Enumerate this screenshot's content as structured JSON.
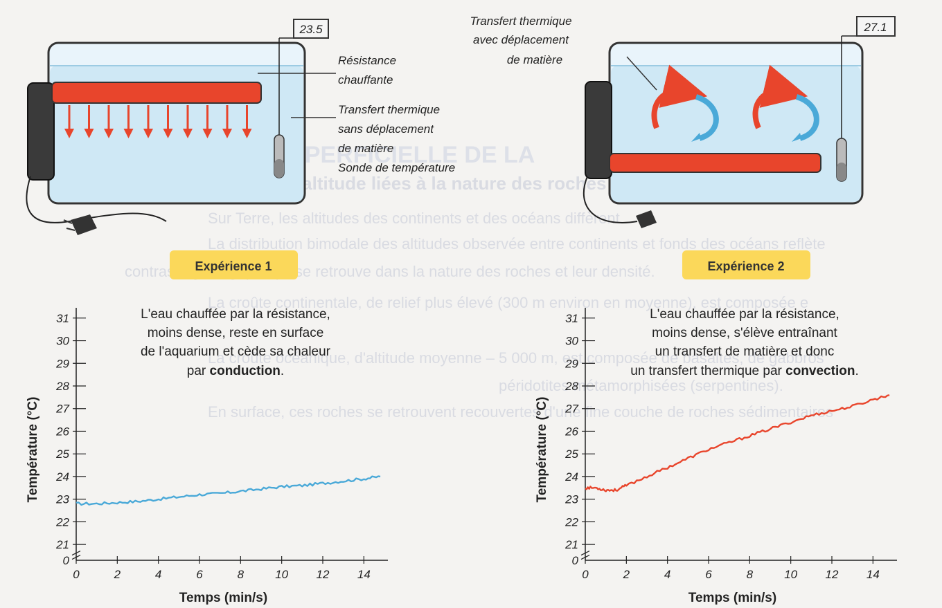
{
  "background": {
    "heading": "LA STRUCTURE SUPERFICIELLE DE LA",
    "section_title": "A. Des différences d'altitude liées à la nature des roches crustales",
    "lines": [
      "Sur Terre, les altitudes des continents et des océans diffèrent.",
      "La distribution bimodale des altitudes observée entre continents et fonds des océans reflète",
      "contraste géologique qui se retrouve dans la nature des roches et leur densité.",
      "La croûte continentale, de relief plus élevé (300 m environ en moyenne), est composée e",
      "La croûte océanique, d'altitude moyenne – 5 000 m, est composée de basaltes, de gabbros",
      "péridotites métamorphisées (serpentines).",
      "En surface, ces roches se retrouvent recouvertes d'une fine couche de roches sédimentaires"
    ]
  },
  "exp1": {
    "badge": "Expérience 1",
    "display_value": "23.5",
    "label_resistance": [
      "Résistance",
      "chauffante"
    ],
    "label_transfer": [
      "Transfert thermique",
      "sans déplacement",
      "de matière"
    ],
    "label_probe": "Sonde de température",
    "description": [
      "L'eau chauffée par la résistance,",
      "moins dense, reste en surface",
      "de l'aquarium et cède sa chaleur",
      "par "
    ],
    "description_bold": "conduction",
    "description_end": "."
  },
  "exp2": {
    "badge": "Expérience 2",
    "display_value": "27.1",
    "label_transfer": [
      "Transfert thermique",
      "avec déplacement",
      "de matière"
    ],
    "description": [
      "L'eau chauffée par la résistance,",
      "moins dense, s'élève entraînant",
      "un transfert de matière et donc",
      "un transfert thermique par "
    ],
    "description_bold": "convection",
    "description_end": "."
  },
  "colors": {
    "water": "#cfe8f5",
    "heater": "#e8452c",
    "arrow": "#e8452c",
    "line1": "#4aa9d8",
    "line2": "#e8452c",
    "badge": "#fbd85a"
  },
  "chart_data": [
    {
      "type": "line",
      "title": "",
      "xlabel": "Temps (min/s)",
      "ylabel": "Température (°C)",
      "x_ticks": [
        0,
        2,
        4,
        6,
        8,
        10,
        12,
        14
      ],
      "y_ticks": [
        21,
        22,
        23,
        24,
        25,
        26,
        27,
        28,
        29,
        30,
        31
      ],
      "y_zero_label": "0",
      "xlim": [
        0,
        15
      ],
      "ylim": [
        20.3,
        31.3
      ],
      "series": [
        {
          "x": [
            0,
            1,
            2,
            3,
            4,
            5,
            6,
            7,
            8,
            9,
            10,
            11,
            12,
            13,
            14,
            14.8
          ],
          "y": [
            22.8,
            22.8,
            22.85,
            22.9,
            23.0,
            23.1,
            23.2,
            23.25,
            23.35,
            23.45,
            23.55,
            23.6,
            23.7,
            23.8,
            23.9,
            24.0
          ]
        }
      ]
    },
    {
      "type": "line",
      "title": "",
      "xlabel": "Temps (min/s)",
      "ylabel": "Température (°C)",
      "x_ticks": [
        0,
        2,
        4,
        6,
        8,
        10,
        12,
        14
      ],
      "y_ticks": [
        21,
        22,
        23,
        24,
        25,
        26,
        27,
        28,
        29,
        30,
        31
      ],
      "y_zero_label": "0",
      "xlim": [
        0,
        15
      ],
      "ylim": [
        20.3,
        31.3
      ],
      "series": [
        {
          "x": [
            0,
            0.5,
            1,
            1.5,
            2,
            3,
            4,
            5,
            6,
            7,
            8,
            9,
            10,
            11,
            12,
            13,
            14,
            14.8
          ],
          "y": [
            23.5,
            23.5,
            23.4,
            23.4,
            23.6,
            24.0,
            24.4,
            24.8,
            25.2,
            25.5,
            25.8,
            26.1,
            26.4,
            26.7,
            26.9,
            27.1,
            27.4,
            27.6
          ]
        }
      ]
    }
  ]
}
